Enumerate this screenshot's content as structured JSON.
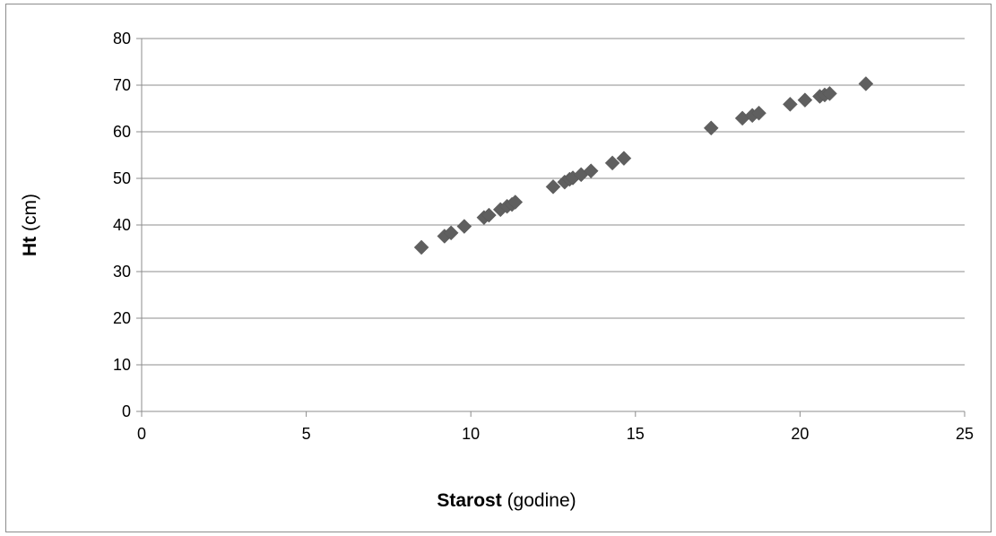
{
  "chart_data": {
    "type": "scatter",
    "xlabel_bold": "Starost",
    "xlabel_rest": " (godine)",
    "ylabel_bold": "Ht",
    "ylabel_rest": " (cm)",
    "xlim": [
      0,
      25
    ],
    "ylim": [
      0,
      80
    ],
    "x_ticks": [
      0,
      5,
      10,
      15,
      20,
      25
    ],
    "y_ticks": [
      0,
      10,
      20,
      30,
      40,
      50,
      60,
      70,
      80
    ],
    "grid": "horizontal",
    "legend": "none",
    "marker": "diamond",
    "marker_color": "#5f5f5f",
    "points": [
      {
        "x": 8.5,
        "y": 35.2
      },
      {
        "x": 9.2,
        "y": 37.6
      },
      {
        "x": 9.4,
        "y": 38.3
      },
      {
        "x": 9.8,
        "y": 39.7
      },
      {
        "x": 10.4,
        "y": 41.6
      },
      {
        "x": 10.55,
        "y": 42.1
      },
      {
        "x": 10.9,
        "y": 43.3
      },
      {
        "x": 11.1,
        "y": 44.0
      },
      {
        "x": 11.25,
        "y": 44.4
      },
      {
        "x": 11.35,
        "y": 44.9
      },
      {
        "x": 12.5,
        "y": 48.2
      },
      {
        "x": 12.85,
        "y": 49.2
      },
      {
        "x": 13.0,
        "y": 49.8
      },
      {
        "x": 13.1,
        "y": 50.1
      },
      {
        "x": 13.35,
        "y": 50.8
      },
      {
        "x": 13.65,
        "y": 51.6
      },
      {
        "x": 14.3,
        "y": 53.3
      },
      {
        "x": 14.65,
        "y": 54.3
      },
      {
        "x": 17.3,
        "y": 60.8
      },
      {
        "x": 18.25,
        "y": 62.9
      },
      {
        "x": 18.55,
        "y": 63.5
      },
      {
        "x": 18.75,
        "y": 64.0
      },
      {
        "x": 19.7,
        "y": 65.9
      },
      {
        "x": 20.15,
        "y": 66.8
      },
      {
        "x": 20.6,
        "y": 67.6
      },
      {
        "x": 20.75,
        "y": 67.9
      },
      {
        "x": 20.9,
        "y": 68.2
      },
      {
        "x": 22.0,
        "y": 70.3
      }
    ]
  }
}
